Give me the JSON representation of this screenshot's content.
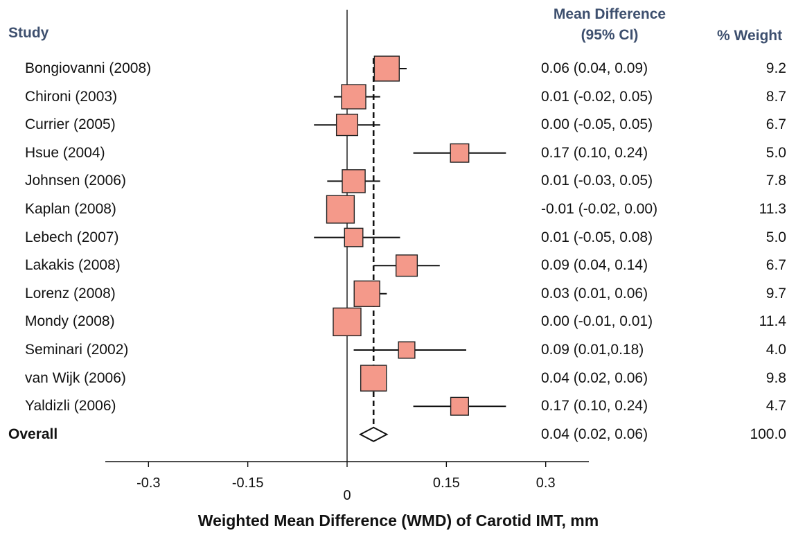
{
  "chart_data": {
    "type": "forest",
    "headers": {
      "study": "Study",
      "effect_line1": "Mean Difference",
      "effect_line2": "(95% CI)",
      "weight": "% Weight"
    },
    "studies": [
      {
        "name": "Bongiovanni (2008)",
        "estimate": 0.06,
        "lower": 0.04,
        "upper": 0.09,
        "ci_text": "0.06 (0.04, 0.09)",
        "weight": "9.2"
      },
      {
        "name": "Chironi (2003)",
        "estimate": 0.01,
        "lower": -0.02,
        "upper": 0.05,
        "ci_text": "0.01 (-0.02, 0.05)",
        "weight": "8.7"
      },
      {
        "name": "Currier (2005)",
        "estimate": 0.0,
        "lower": -0.05,
        "upper": 0.05,
        "ci_text": "0.00 (-0.05, 0.05)",
        "weight": "6.7"
      },
      {
        "name": "Hsue (2004)",
        "estimate": 0.17,
        "lower": 0.1,
        "upper": 0.24,
        "ci_text": "0.17 (0.10, 0.24)",
        "weight": "5.0"
      },
      {
        "name": "Johnsen (2006)",
        "estimate": 0.01,
        "lower": -0.03,
        "upper": 0.05,
        "ci_text": "0.01 (-0.03, 0.05)",
        "weight": "7.8"
      },
      {
        "name": "Kaplan (2008)",
        "estimate": -0.01,
        "lower": -0.02,
        "upper": 0.0,
        "ci_text": "-0.01 (-0.02, 0.00)",
        "weight": "11.3"
      },
      {
        "name": "Lebech (2007)",
        "estimate": 0.01,
        "lower": -0.05,
        "upper": 0.08,
        "ci_text": "0.01 (-0.05, 0.08)",
        "weight": "5.0"
      },
      {
        "name": "Lakakis (2008)",
        "estimate": 0.09,
        "lower": 0.04,
        "upper": 0.14,
        "ci_text": "0.09 (0.04, 0.14)",
        "weight": "6.7"
      },
      {
        "name": "Lorenz (2008)",
        "estimate": 0.03,
        "lower": 0.01,
        "upper": 0.06,
        "ci_text": "0.03 (0.01, 0.06)",
        "weight": "9.7"
      },
      {
        "name": "Mondy (2008)",
        "estimate": 0.0,
        "lower": -0.01,
        "upper": 0.01,
        "ci_text": "0.00 (-0.01, 0.01)",
        "weight": "11.4"
      },
      {
        "name": "Seminari (2002)",
        "estimate": 0.09,
        "lower": 0.01,
        "upper": 0.18,
        "ci_text": "0.09 (0.01,0.18)",
        "weight": "4.0"
      },
      {
        "name": "van Wijk (2006)",
        "estimate": 0.04,
        "lower": 0.02,
        "upper": 0.06,
        "ci_text": "0.04 (0.02, 0.06)",
        "weight": "9.8"
      },
      {
        "name": "Yaldizli (2006)",
        "estimate": 0.17,
        "lower": 0.1,
        "upper": 0.24,
        "ci_text": "0.17 (0.10, 0.24)",
        "weight": "4.7"
      }
    ],
    "overall": {
      "name": "Overall",
      "estimate": 0.04,
      "lower": 0.02,
      "upper": 0.06,
      "ci_text": "0.04 (0.02, 0.06)",
      "weight": "100.0"
    },
    "x_ticks": [
      {
        "value": -0.3,
        "label": "-0.3"
      },
      {
        "value": -0.15,
        "label": "-0.15"
      },
      {
        "value": 0,
        "label": "0"
      },
      {
        "value": 0.15,
        "label": "0.15"
      },
      {
        "value": 0.3,
        "label": "0.3"
      }
    ],
    "xlim": [
      -0.3,
      0.3
    ],
    "xlabel": "Weighted Mean Difference (WMD) of Carotid IMT, mm",
    "colors": {
      "box_fill": "#f4998a",
      "header_text": "#3d4f6e",
      "line": "#111111"
    }
  }
}
